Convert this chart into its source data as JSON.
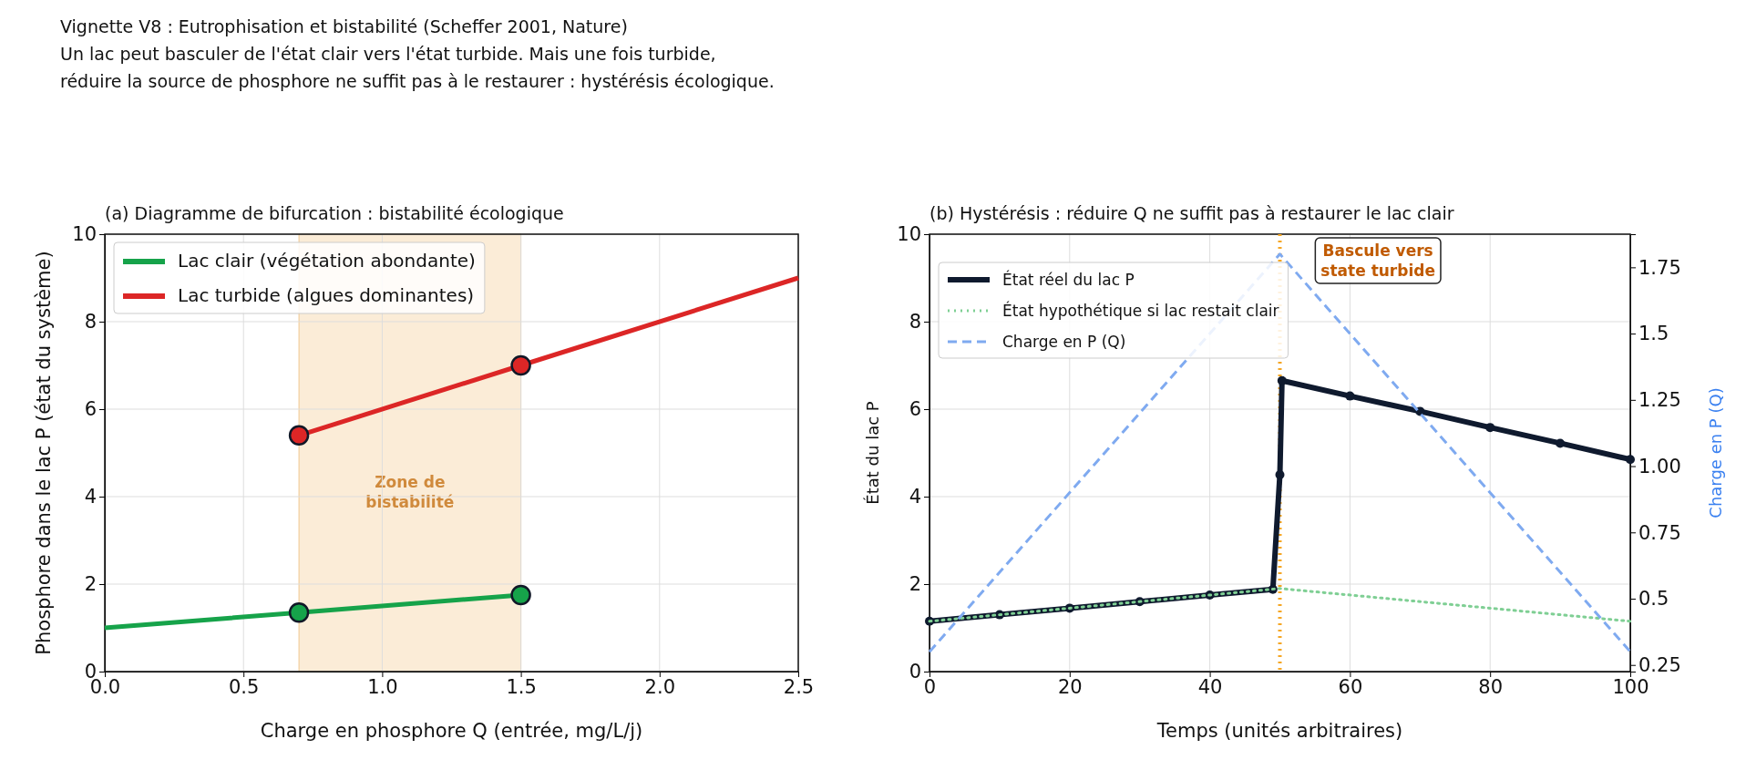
{
  "chart_data": [
    {
      "type": "line",
      "title": "(a) Diagramme de bifurcation : bistabilité écologique",
      "xlabel": "Charge en phosphore Q (entrée, mg/L/j)",
      "ylabel": "Phosphore dans le lac P (état du système)",
      "annotations": [
        "Vignette V8 : Eutrophisation et bistabilité (Scheffer 2001, Nature)\nUn lac peut basculer de l'état clair vers l'état turbide. Mais une fois turbide,\nréduire la source de phosphore ne suffit pas à le restaurer : hystérésis écologique."
      ],
      "xlim": [
        0,
        2.5
      ],
      "xticks": [
        {
          "value": 0,
          "label": "0.0"
        },
        0.5,
        {
          "value": 1,
          "label": "1.0"
        },
        1.5,
        {
          "value": 2,
          "label": "2.0"
        },
        2.5
      ],
      "ylim": [
        0,
        10
      ],
      "yticks": [
        0,
        2,
        4,
        6,
        8,
        10
      ],
      "grid": true,
      "legend": "top left",
      "bands": [
        {
          "axis": "x",
          "from": 0.7,
          "to": 1.5,
          "label": "Zone de\nbistabilité",
          "color": "#fbecd7"
        }
      ],
      "series": [
        {
          "type": "line",
          "name": "Lac clair (végétation abondante)",
          "color": "#16a34a",
          "x": [
            0,
            0.7,
            1.5
          ],
          "values": [
            1,
            1.35,
            1.75
          ],
          "line_style": "solid"
        },
        {
          "type": "line",
          "name": "Lac turbide (algues dominantes)",
          "color": "#dc2626",
          "x": [
            0.7,
            1.5,
            2.5
          ],
          "values": [
            5.4,
            7,
            9
          ],
          "line_style": "solid"
        },
        {
          "type": "scatter",
          "color": "#16a34a",
          "x": [
            0.7,
            1.5
          ],
          "values": [
            1.35,
            1.75
          ],
          "marker": "circle"
        },
        {
          "type": "scatter",
          "color": "#dc2626",
          "x": [
            0.7,
            1.5
          ],
          "values": [
            5.4,
            7
          ],
          "marker": "circle"
        }
      ]
    },
    {
      "type": "line",
      "title": "(b) Hystérésis : réduire Q ne suffit pas à restaurer le lac clair",
      "xlabel": "Temps (unités arbitraires)",
      "ylabel": "État du lac P",
      "y2label": "Charge en P (Q)",
      "xlim": [
        0,
        100
      ],
      "xticks": [
        0,
        20,
        40,
        60,
        80,
        100
      ],
      "ylim": [
        0,
        10
      ],
      "yticks": [
        0,
        2,
        4,
        6,
        8,
        10
      ],
      "y2lim": [
        0.225,
        1.875
      ],
      "y2ticks": [
        0.25,
        0.5,
        0.75,
        {
          "value": 1,
          "label": "1.00"
        },
        1.25,
        1.5,
        1.75
      ],
      "grid": true,
      "legend": "top left",
      "ref_lines": [
        {
          "axis": "x",
          "value": 50,
          "color": "#f5a623",
          "line_style": "dotted"
        }
      ],
      "annotations": [
        "Bascule vers\nstate turbide"
      ],
      "series": [
        {
          "type": "line",
          "name": "État réel du lac P",
          "color": "#0f1a2e",
          "x": [
            0,
            10,
            20,
            30,
            40,
            49,
            50,
            50.3,
            60,
            70,
            80,
            90,
            100
          ],
          "values": [
            1.15,
            1.3,
            1.45,
            1.6,
            1.75,
            1.88,
            4.5,
            6.65,
            6.3,
            5.95,
            5.58,
            5.22,
            4.85
          ],
          "line_style": "solid",
          "marker": "circle"
        },
        {
          "type": "line",
          "name": "État hypothétique si lac restait clair",
          "color": "#7fcf94",
          "x": [
            0,
            50,
            100
          ],
          "values": [
            1.15,
            1.9,
            1.15
          ],
          "line_style": "dotted"
        },
        {
          "type": "line",
          "name": "Charge en P (Q)",
          "color": "#7faaf0",
          "x": [
            0,
            50,
            100
          ],
          "values": [
            0.3,
            1.8,
            0.3
          ],
          "line_style": "dashed",
          "axis": "y2"
        }
      ]
    }
  ]
}
